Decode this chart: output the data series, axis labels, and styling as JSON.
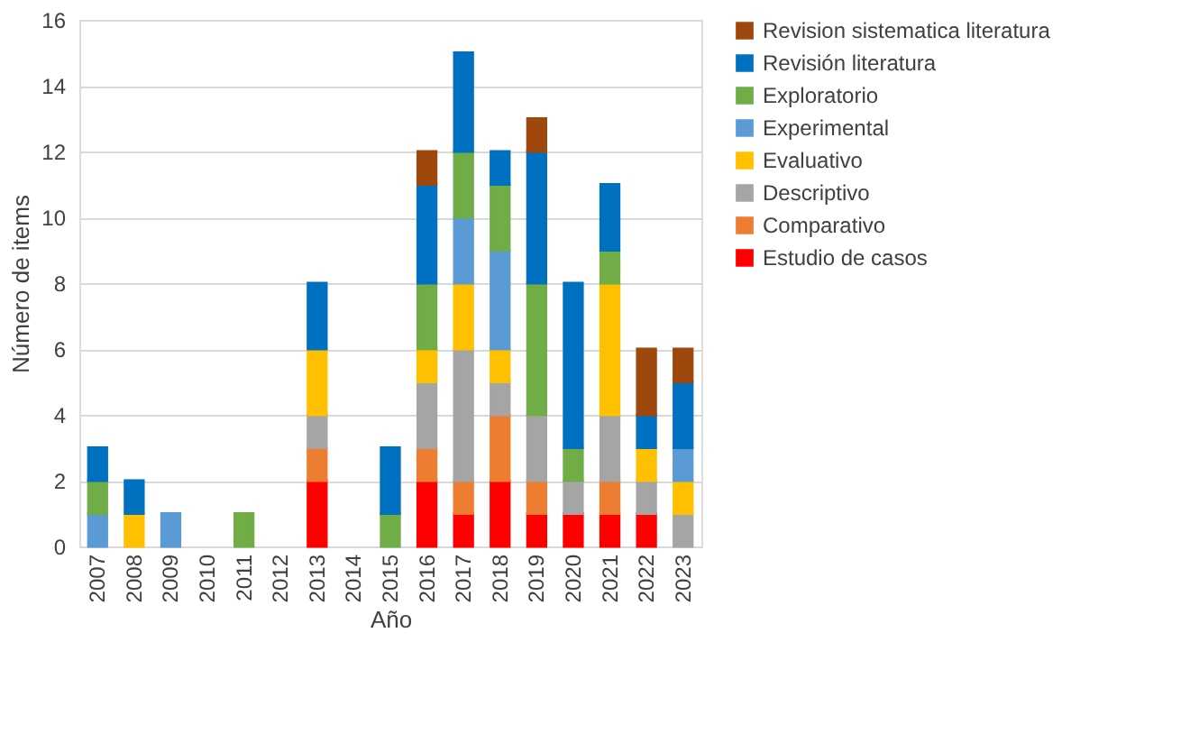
{
  "chart_data": {
    "type": "bar",
    "stacked": true,
    "xlabel": "Año",
    "ylabel": "Número de items",
    "categories": [
      "2007",
      "2008",
      "2009",
      "2010",
      "2011",
      "2012",
      "2013",
      "2014",
      "2015",
      "2016",
      "2017",
      "2018",
      "2019",
      "2020",
      "2021",
      "2022",
      "2023"
    ],
    "series": [
      {
        "name": "Estudio de casos",
        "color": "#ff0000",
        "values": [
          0,
          0,
          0,
          0,
          0,
          0,
          2,
          0,
          0,
          2,
          1,
          2,
          1,
          1,
          1,
          1,
          0
        ]
      },
      {
        "name": "Comparativo",
        "color": "#ed7d31",
        "values": [
          0,
          0,
          0,
          0,
          0,
          0,
          1,
          0,
          0,
          1,
          1,
          2,
          1,
          0,
          1,
          0,
          0
        ]
      },
      {
        "name": "Descriptivo",
        "color": "#a5a5a5",
        "values": [
          0,
          0,
          0,
          0,
          0,
          0,
          1,
          0,
          0,
          2,
          4,
          1,
          2,
          1,
          2,
          1,
          1
        ]
      },
      {
        "name": "Evaluativo",
        "color": "#ffc000",
        "values": [
          0,
          1,
          0,
          0,
          0,
          0,
          2,
          0,
          0,
          1,
          2,
          1,
          0,
          0,
          4,
          1,
          1
        ]
      },
      {
        "name": "Experimental",
        "color": "#5b9bd5",
        "values": [
          1,
          0,
          1,
          0,
          0,
          0,
          0,
          0,
          0,
          0,
          2,
          3,
          0,
          0,
          0,
          0,
          1
        ]
      },
      {
        "name": "Exploratorio",
        "color": "#70ad47",
        "values": [
          1,
          0,
          0,
          0,
          1,
          0,
          0,
          0,
          1,
          2,
          2,
          2,
          4,
          1,
          1,
          0,
          0
        ]
      },
      {
        "name": "Revisión literatura",
        "color": "#0070c0",
        "values": [
          1,
          1,
          0,
          0,
          0,
          0,
          2,
          0,
          2,
          3,
          3,
          1,
          4,
          5,
          2,
          1,
          2
        ]
      },
      {
        "name": "Revision sistematica literatura",
        "color": "#9e480e",
        "values": [
          0,
          0,
          0,
          0,
          0,
          0,
          0,
          0,
          0,
          1,
          0,
          0,
          1,
          0,
          0,
          2,
          1
        ]
      }
    ],
    "ylim": [
      0,
      16
    ],
    "yticks": [
      0,
      2,
      4,
      6,
      8,
      10,
      12,
      14,
      16
    ],
    "grid": "y",
    "legend": "right"
  }
}
